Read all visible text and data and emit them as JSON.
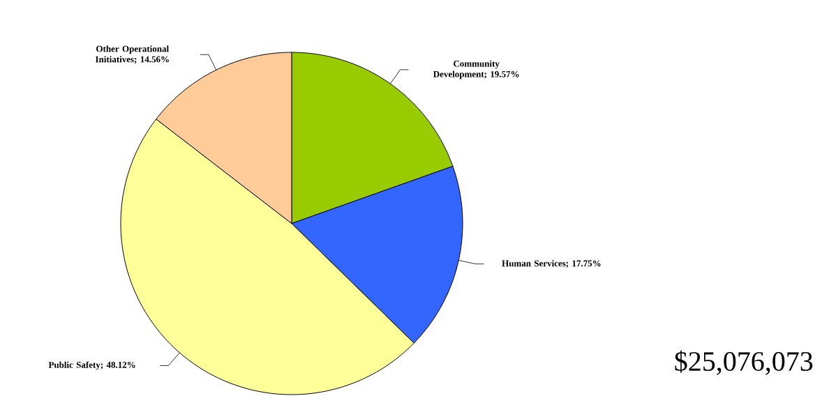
{
  "chart_data": {
    "type": "pie",
    "categories": [
      "Community Development",
      "Human Services",
      "Public Safety",
      "Other Operational Initiatives"
    ],
    "values": [
      19.57,
      17.75,
      48.12,
      14.56
    ],
    "value_labels": [
      "; 19.57%",
      "; 17.75%",
      "; 48.12%",
      "; 14.56%"
    ],
    "colors": [
      "#99cc00",
      "#3366ff",
      "#ffff99",
      "#ffcc99"
    ],
    "annotations": [
      "$25,076,073"
    ]
  }
}
